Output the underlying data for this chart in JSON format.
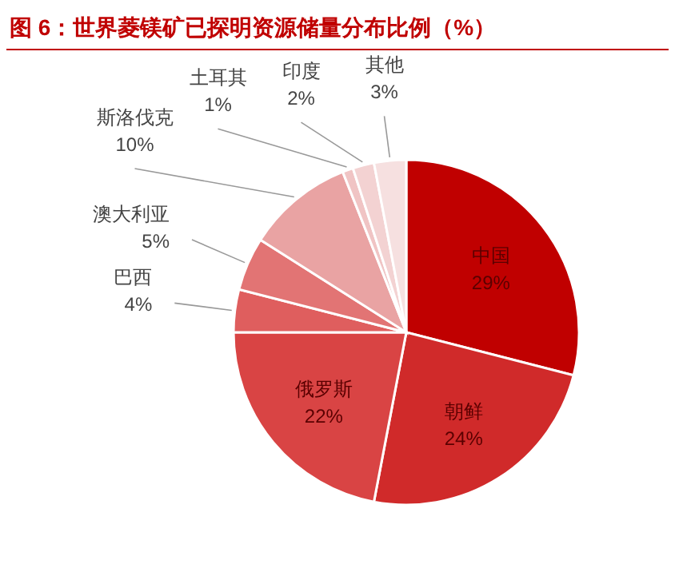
{
  "chart_data": {
    "type": "pie",
    "title": "图 6：世界菱镁矿已探明资源储量分布比例（%）",
    "categories": [
      "中国",
      "朝鲜",
      "俄罗斯",
      "巴西",
      "澳大利亚",
      "斯洛伐克",
      "土耳其",
      "印度",
      "其他"
    ],
    "values": [
      29,
      24,
      22,
      4,
      5,
      10,
      1,
      2,
      3
    ],
    "value_labels": [
      "29%",
      "24%",
      "22%",
      "4%",
      "5%",
      "10%",
      "1%",
      "2%",
      "3%"
    ],
    "colors": [
      "#c00000",
      "#d02a2a",
      "#d94444",
      "#df5e5e",
      "#e27474",
      "#e9a3a3",
      "#f0c4c4",
      "#f3d2d2",
      "#f6e0e0"
    ]
  }
}
